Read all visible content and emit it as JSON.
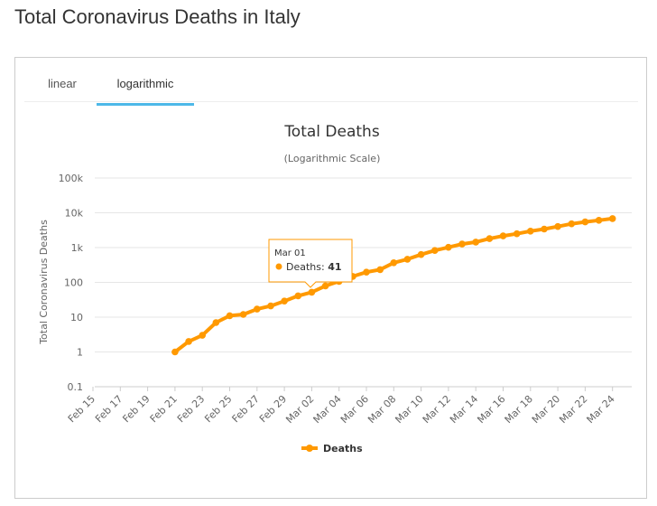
{
  "page": {
    "title": "Total Coronavirus Deaths in Italy"
  },
  "tabs": [
    {
      "label": "linear",
      "active": false
    },
    {
      "label": "logarithmic",
      "active": true
    }
  ],
  "tooltip": {
    "date": "Mar 01",
    "series": "Deaths",
    "value": "41"
  },
  "colors": {
    "series": "#ff9900",
    "active_tab": "#4db8e8",
    "grid": "#e6e6e6"
  },
  "chart_data": {
    "type": "line",
    "title": "Total Deaths",
    "subtitle": "(Logarithmic Scale)",
    "xlabel": "",
    "ylabel": "Total Coronavirus Deaths",
    "y_scale": "log",
    "ylim": [
      0.1,
      100000
    ],
    "y_ticks": [
      0.1,
      1,
      10,
      100,
      1000,
      10000,
      100000
    ],
    "y_tick_labels": [
      "0.1",
      "1",
      "10",
      "100",
      "1k",
      "10k",
      "100k"
    ],
    "x_tick_labels": [
      "Feb 15",
      "Feb 17",
      "Feb 19",
      "Feb 21",
      "Feb 23",
      "Feb 25",
      "Feb 27",
      "Feb 29",
      "Mar 02",
      "Mar 04",
      "Mar 06",
      "Mar 08",
      "Mar 10",
      "Mar 12",
      "Mar 14",
      "Mar 16",
      "Mar 18",
      "Mar 20",
      "Mar 22",
      "Mar 24"
    ],
    "legend": {
      "position": "bottom-center"
    },
    "series": [
      {
        "name": "Deaths",
        "x": [
          "Feb 21",
          "Feb 22",
          "Feb 23",
          "Feb 24",
          "Feb 25",
          "Feb 26",
          "Feb 27",
          "Feb 28",
          "Feb 29",
          "Mar 01",
          "Mar 02",
          "Mar 03",
          "Mar 04",
          "Mar 05",
          "Mar 06",
          "Mar 07",
          "Mar 08",
          "Mar 09",
          "Mar 10",
          "Mar 11",
          "Mar 12",
          "Mar 13",
          "Mar 14",
          "Mar 15",
          "Mar 16",
          "Mar 17",
          "Mar 18",
          "Mar 19",
          "Mar 20",
          "Mar 21",
          "Mar 22",
          "Mar 23",
          "Mar 24"
        ],
        "values": [
          1,
          2,
          3,
          7,
          11,
          12,
          17,
          21,
          29,
          41,
          52,
          79,
          107,
          148,
          197,
          233,
          366,
          463,
          631,
          827,
          1016,
          1266,
          1441,
          1809,
          2158,
          2503,
          2978,
          3405,
          4032,
          4825,
          5476,
          6077,
          6820
        ]
      }
    ]
  }
}
